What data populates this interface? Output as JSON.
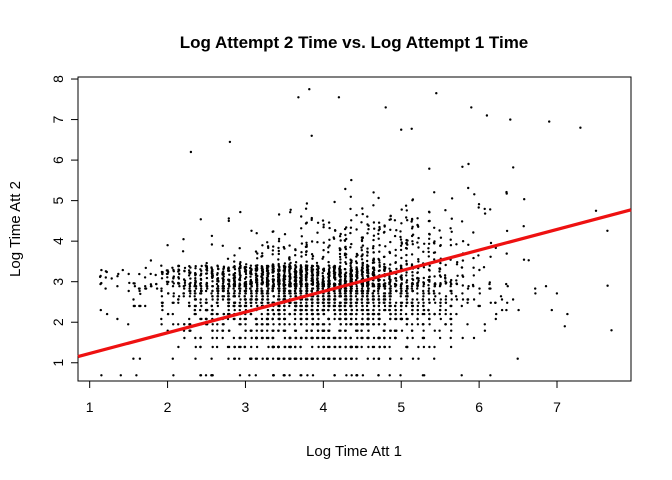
{
  "chart_data": {
    "type": "scatter",
    "title": "Log Attempt 2 Time vs. Log Attempt 1 Time",
    "xlabel": "Log Time Att 1",
    "ylabel": "Log Time Att 2",
    "xlim": [
      0.85,
      7.95
    ],
    "ylim": [
      0.55,
      8.05
    ],
    "xticks": [
      1,
      2,
      3,
      4,
      5,
      6,
      7
    ],
    "yticks": [
      1,
      2,
      3,
      4,
      5,
      6,
      7,
      8
    ],
    "grid": false,
    "legend": "none",
    "point_color": "#000000",
    "regression_line": {
      "color": "#ee1111",
      "intercept": 0.72,
      "slope": 0.51
    },
    "point_cloud_summary": {
      "discrete_y_levels": [
        0.69,
        1.1,
        1.39,
        1.61,
        1.79,
        1.95,
        2.08,
        2.2,
        2.3,
        2.4,
        2.48,
        2.56,
        2.64,
        2.71,
        2.77,
        2.83,
        2.89,
        2.94
      ],
      "x_range": [
        1.1,
        7.7
      ],
      "y_range": [
        0.69,
        7.75
      ],
      "center": [
        3.9,
        2.9
      ]
    },
    "points": [
      [
        3.82,
        7.75
      ],
      [
        5.45,
        7.65
      ],
      [
        3.68,
        7.55
      ],
      [
        4.2,
        7.55
      ],
      [
        4.8,
        7.3
      ],
      [
        5.9,
        7.3
      ],
      [
        6.1,
        7.1
      ],
      [
        6.4,
        7.0
      ],
      [
        6.9,
        6.95
      ],
      [
        7.3,
        6.8
      ],
      [
        3.85,
        6.6
      ],
      [
        5.0,
        6.75
      ],
      [
        2.3,
        6.2
      ],
      [
        2.8,
        6.45
      ],
      [
        7.5,
        4.75
      ],
      [
        1.15,
        0.69
      ],
      [
        1.4,
        0.69
      ],
      [
        1.6,
        0.69
      ],
      [
        3.05,
        0.69
      ],
      [
        2.2,
        3.75
      ],
      [
        2.0,
        3.9
      ],
      [
        1.65,
        2.7
      ],
      [
        7.65,
        2.9
      ],
      [
        7.7,
        1.8
      ],
      [
        7.1,
        1.9
      ]
    ]
  }
}
